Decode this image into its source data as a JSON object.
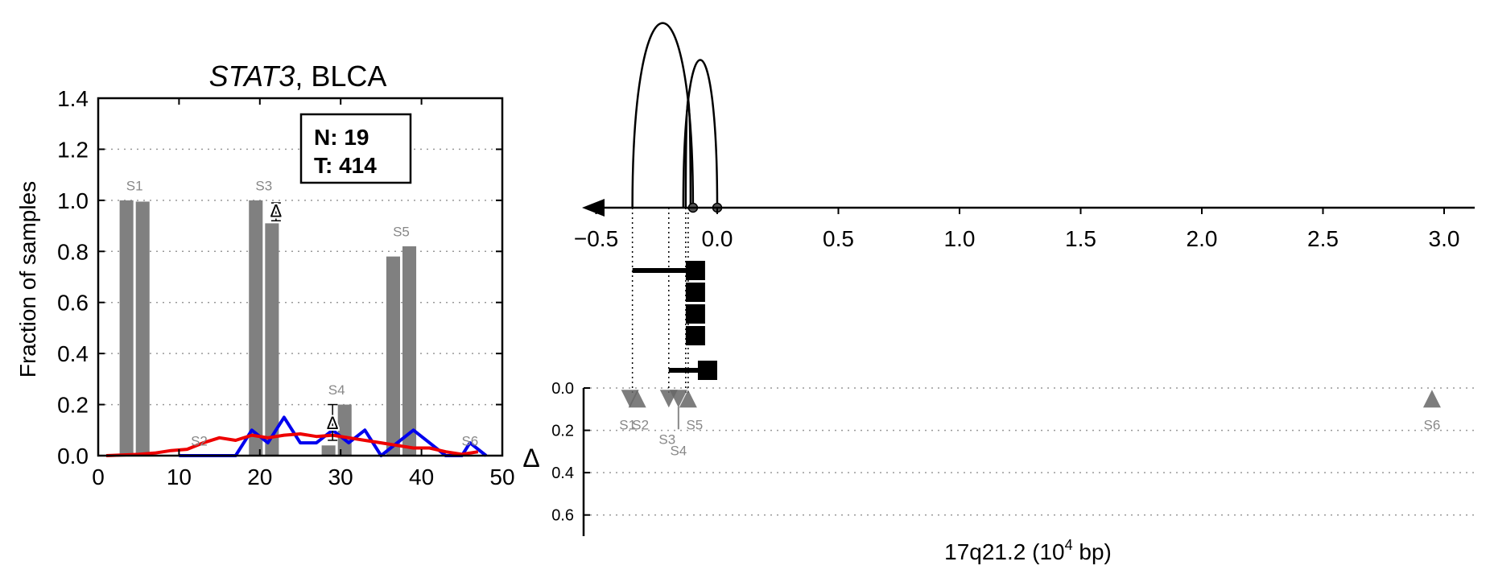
{
  "chart_data": [
    {
      "type": "bar",
      "title_gene": "STAT3",
      "title_rest": ", BLCA",
      "ylabel": "Fraction of samples",
      "xlim": [
        0,
        50
      ],
      "ylim": [
        0,
        1.4
      ],
      "x_ticks": [
        "0",
        "10",
        "20",
        "30",
        "40",
        "50"
      ],
      "y_ticks": [
        "0.0",
        "0.2",
        "0.4",
        "0.6",
        "0.8",
        "1.0",
        "1.2",
        "1.4"
      ],
      "grid": "horizontal dotted",
      "counts_box": {
        "line1": "N: 19",
        "line2": "T: 414"
      },
      "bar_color": "#808080",
      "bars": [
        {
          "x": 3.5,
          "value": 1.0
        },
        {
          "x": 5.5,
          "value": 0.995
        },
        {
          "x": 19.5,
          "value": 1.0
        },
        {
          "x": 21.5,
          "value": 0.91
        },
        {
          "x": 28.5,
          "value": 0.04
        },
        {
          "x": 30.5,
          "value": 0.2
        },
        {
          "x": 36.5,
          "value": 0.78
        },
        {
          "x": 38.5,
          "value": 0.82
        }
      ],
      "segment_labels": [
        {
          "label": "S1",
          "x": 4.5,
          "y": 1.02
        },
        {
          "label": "S2",
          "x": 12.5,
          "y": 0.02
        },
        {
          "label": "S3",
          "x": 20.5,
          "y": 1.02
        },
        {
          "label": "S4",
          "x": 29.5,
          "y": 0.22
        },
        {
          "label": "S5",
          "x": 37.5,
          "y": 0.84
        },
        {
          "label": "S6",
          "x": 46,
          "y": 0.02
        }
      ],
      "delta_markers": [
        {
          "label": "Δ",
          "x": 22,
          "y": 0.96,
          "err_top": 0.99,
          "err_bottom": 0.92
        },
        {
          "label": "Δ",
          "x": 29,
          "y": 0.13,
          "err_top": 0.2,
          "err_bottom": 0.06
        }
      ],
      "series": [
        {
          "color": "#0000ee",
          "points": [
            [
              10,
              0
            ],
            [
              17,
              0
            ],
            [
              19,
              0.1
            ],
            [
              21,
              0.05
            ],
            [
              23,
              0.15
            ],
            [
              25,
              0.05
            ],
            [
              27,
              0.05
            ],
            [
              29,
              0.1
            ],
            [
              31,
              0.05
            ],
            [
              33,
              0.1
            ],
            [
              35,
              0.0
            ],
            [
              37,
              0.05
            ],
            [
              39,
              0.1
            ],
            [
              41,
              0.05
            ],
            [
              43,
              0.0
            ],
            [
              45,
              0.0
            ],
            [
              46,
              0.05
            ],
            [
              48,
              0.0
            ]
          ]
        },
        {
          "color": "#ee0000",
          "points": [
            [
              1,
              0
            ],
            [
              5,
              0.005
            ],
            [
              7,
              0.01
            ],
            [
              9,
              0.02
            ],
            [
              11,
              0.025
            ],
            [
              13,
              0.05
            ],
            [
              15,
              0.07
            ],
            [
              17,
              0.06
            ],
            [
              19,
              0.08
            ],
            [
              21,
              0.07
            ],
            [
              23,
              0.08
            ],
            [
              25,
              0.085
            ],
            [
              27,
              0.075
            ],
            [
              29,
              0.08
            ],
            [
              31,
              0.07
            ],
            [
              33,
              0.06
            ],
            [
              35,
              0.05
            ],
            [
              37,
              0.04
            ],
            [
              39,
              0.03
            ],
            [
              41,
              0.03
            ],
            [
              43,
              0.015
            ],
            [
              45,
              0.005
            ],
            [
              47,
              0.015
            ]
          ]
        }
      ]
    },
    {
      "type": "scatter",
      "xlabel_prefix": "17q21.2 (10",
      "xlabel_exp": "4",
      "xlabel_suffix": " bp)",
      "ylabel": "Δ",
      "xlim": [
        -0.55,
        3.2
      ],
      "x_ticks": [
        "−0.5",
        "0.0",
        "0.5",
        "1.0",
        "1.5",
        "2.0",
        "2.5",
        "3.0"
      ],
      "x_tick_values": [
        -0.5,
        0.0,
        0.5,
        1.0,
        1.5,
        2.0,
        2.5,
        3.0
      ],
      "ylim": [
        0,
        0.7
      ],
      "y_ticks": [
        "0.0",
        "0.2",
        "0.4",
        "0.6"
      ],
      "y_tick_values": [
        0,
        0.2,
        0.4,
        0.6
      ],
      "grid": "horizontal dotted",
      "arcs": [
        {
          "x1": -0.35,
          "x2": -0.1,
          "height": 1.0
        },
        {
          "x1": -0.14,
          "x2": 0.0,
          "height": 0.8
        },
        {
          "x1": -0.13,
          "x2": -0.11,
          "height": 0.6
        }
      ],
      "arc_endpoints": [
        -0.1,
        0.0
      ],
      "transcripts": [
        {
          "start": -0.35,
          "end": -0.09
        },
        {
          "start": -0.13,
          "end": -0.09
        },
        {
          "start": -0.13,
          "end": -0.09
        },
        {
          "start": -0.13,
          "end": -0.09
        },
        {
          "start": -0.2,
          "end": -0.04
        }
      ],
      "dotted_guides": [
        -0.35,
        -0.2,
        -0.13,
        -0.12
      ],
      "triangle_color": "#666666",
      "triangles": [
        {
          "label": "S1",
          "x": -0.36,
          "y": 0.02,
          "dir": "down"
        },
        {
          "label": "S2",
          "x": -0.33,
          "y": 0.02,
          "dir": "up"
        },
        {
          "label": "S3",
          "x": -0.2,
          "y": 0.02,
          "dir": "down"
        },
        {
          "label": "S4",
          "x": -0.16,
          "y": 0.02,
          "dir": "down"
        },
        {
          "label": "S5",
          "x": -0.12,
          "y": 0.02,
          "dir": "up"
        },
        {
          "label": "S6",
          "x": 2.95,
          "y": 0.02,
          "dir": "up"
        }
      ]
    }
  ]
}
